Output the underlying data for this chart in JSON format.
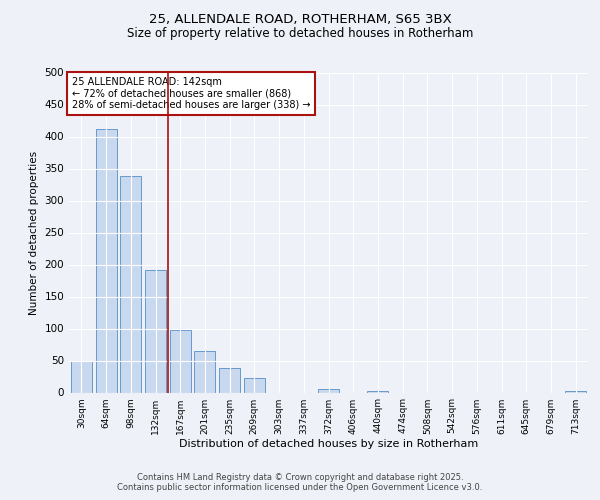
{
  "title_line1": "25, ALLENDALE ROAD, ROTHERHAM, S65 3BX",
  "title_line2": "Size of property relative to detached houses in Rotherham",
  "xlabel": "Distribution of detached houses by size in Rotherham",
  "ylabel": "Number of detached properties",
  "categories": [
    "30sqm",
    "64sqm",
    "98sqm",
    "132sqm",
    "167sqm",
    "201sqm",
    "235sqm",
    "269sqm",
    "303sqm",
    "337sqm",
    "372sqm",
    "406sqm",
    "440sqm",
    "474sqm",
    "508sqm",
    "542sqm",
    "576sqm",
    "611sqm",
    "645sqm",
    "679sqm",
    "713sqm"
  ],
  "values": [
    50,
    412,
    338,
    192,
    98,
    65,
    38,
    22,
    0,
    0,
    5,
    0,
    3,
    0,
    0,
    0,
    0,
    0,
    0,
    0,
    2
  ],
  "bar_color": "#c8d8ee",
  "bar_edge_color": "#6699cc",
  "vline_index": 3.5,
  "vline_color": "#aa1111",
  "annotation_text": "25 ALLENDALE ROAD: 142sqm\n← 72% of detached houses are smaller (868)\n28% of semi-detached houses are larger (338) →",
  "annotation_box_color": "white",
  "annotation_box_edge": "#aa1111",
  "ylim": [
    0,
    500
  ],
  "yticks": [
    0,
    50,
    100,
    150,
    200,
    250,
    300,
    350,
    400,
    450,
    500
  ],
  "footnote": "Contains HM Land Registry data © Crown copyright and database right 2025.\nContains public sector information licensed under the Open Government Licence v3.0.",
  "bg_color": "#eef2f8",
  "title1_fontsize": 9.5,
  "title2_fontsize": 8.5
}
